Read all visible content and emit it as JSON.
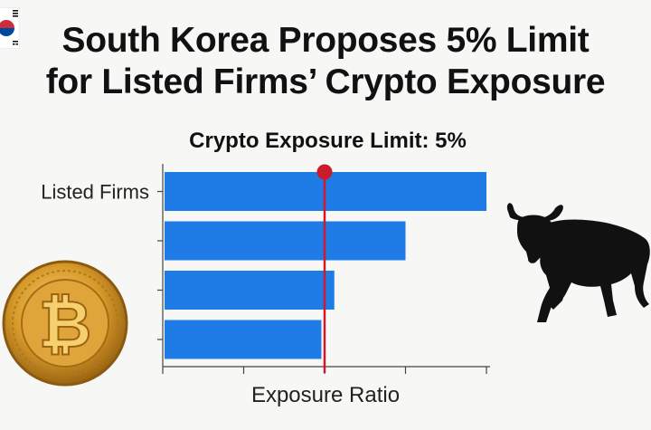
{
  "headline": {
    "line1": "South Korea Proposes 5% Limit",
    "line2": "for Listed Firms’ Crypto Exposure"
  },
  "colors": {
    "bar": "#1f7be6",
    "limit_line": "#cc1b2b",
    "text": "#111111"
  },
  "icons": [
    "south-korea-flag-icon",
    "bitcoin-coin-icon",
    "bull-icon"
  ],
  "chart_data": {
    "type": "bar",
    "orientation": "horizontal",
    "title": "Crypto Exposure Limit: 5%",
    "xlabel": "Exposure Ratio",
    "ylabel": "",
    "categories": [
      "Listed Firms",
      "",
      "",
      ""
    ],
    "values": [
      10,
      7.5,
      5.3,
      4.9
    ],
    "xlim": [
      0,
      10
    ],
    "x_ticks": [
      0,
      2.5,
      5,
      7.5,
      10
    ],
    "x_tick_labels_shown": false,
    "limit": 5,
    "grid": false,
    "legend": "none"
  }
}
